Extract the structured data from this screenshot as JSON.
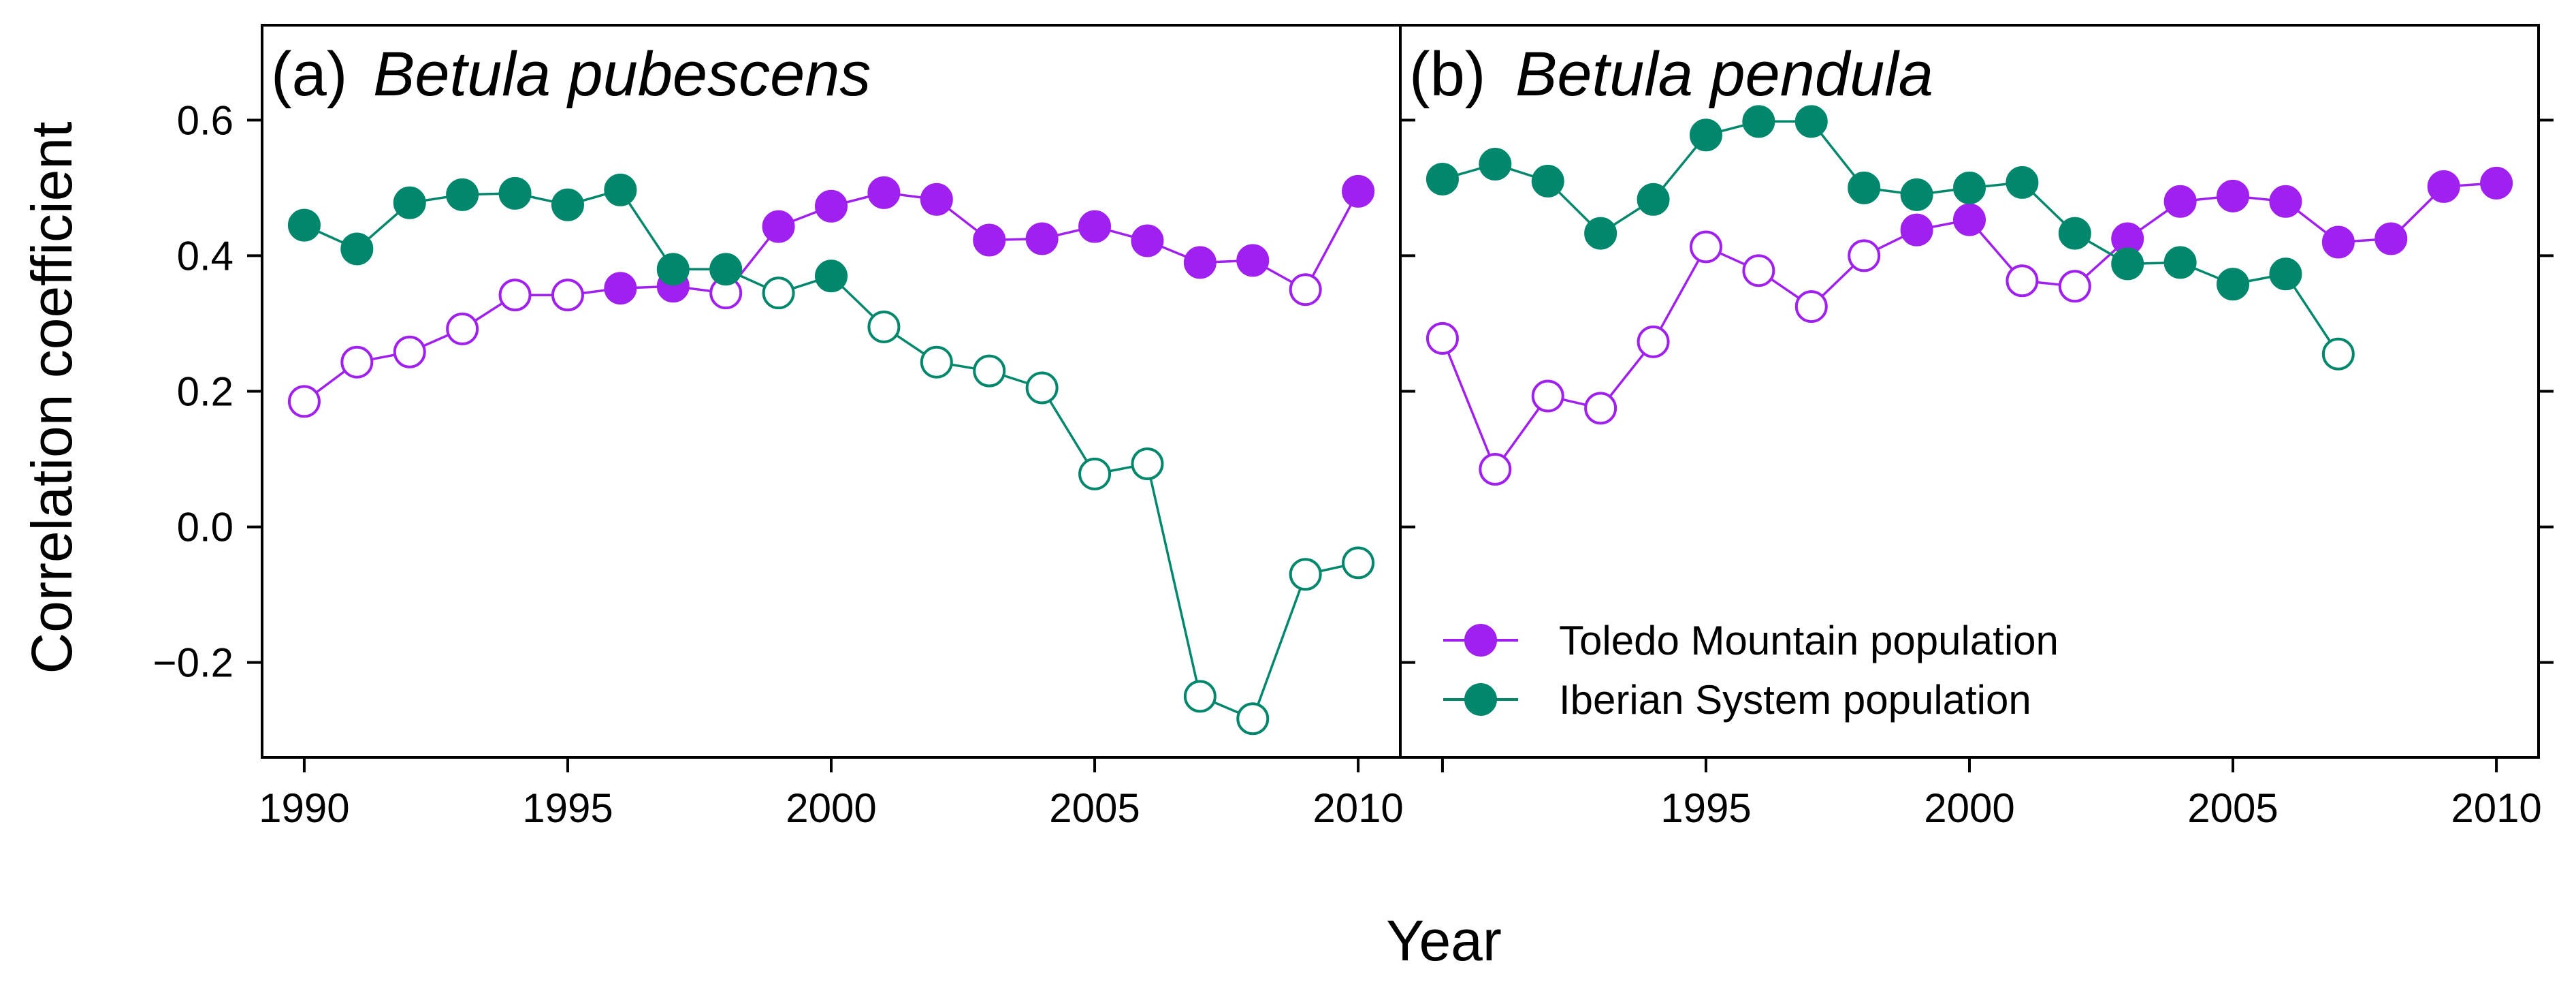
{
  "colors": {
    "toledo": "#a020f0",
    "iberian": "#00876c",
    "axis": "#000000"
  },
  "chart_data": {
    "type": "line",
    "xlabel": "Year",
    "ylabel": "Correlation coefficient",
    "xlim": [
      1989.2,
      2010.8
    ],
    "ylim": [
      -0.34,
      0.74
    ],
    "x_ticks": [
      1990,
      1995,
      2000,
      2005,
      2010
    ],
    "x_tick_labels": [
      "1990",
      "1995",
      "2000",
      "2005",
      "2010"
    ],
    "y_ticks": [
      -0.2,
      0.0,
      0.2,
      0.4,
      0.6
    ],
    "y_tick_labels": [
      "−0.2",
      "0.0",
      "0.2",
      "0.4",
      "0.6"
    ],
    "marker_note": "filled = significant, hollow = not significant",
    "legend": {
      "placement": "bottom-left of panel (b)",
      "entries": [
        {
          "label": "Toledo Mountain population",
          "series": "toledo"
        },
        {
          "label": "Iberian System population",
          "series": "iberian"
        }
      ]
    },
    "panels": [
      {
        "label": "(a)",
        "species": "Betula pubescens",
        "x_tick_labels_shown": [
          "1990",
          "1995",
          "2000",
          "2005",
          "2010"
        ],
        "series": [
          {
            "key": "toledo",
            "name": "Toledo Mountain population",
            "x": [
              1990,
              1991,
              1992,
              1993,
              1994,
              1995,
              1996,
              1997,
              1998,
              1999,
              2000,
              2001,
              2002,
              2003,
              2004,
              2005,
              2006,
              2007,
              2008,
              2009,
              2010
            ],
            "y": [
              0.185,
              0.243,
              0.258,
              0.292,
              0.342,
              0.342,
              0.352,
              0.355,
              0.345,
              0.443,
              0.473,
              0.493,
              0.483,
              0.423,
              0.425,
              0.443,
              0.422,
              0.39,
              0.393,
              0.35,
              0.495
            ],
            "filled": [
              false,
              false,
              false,
              false,
              false,
              false,
              true,
              true,
              false,
              true,
              true,
              true,
              true,
              true,
              true,
              true,
              true,
              true,
              true,
              false,
              true
            ]
          },
          {
            "key": "iberian",
            "name": "Iberian System population",
            "x": [
              1990,
              1991,
              1992,
              1993,
              1994,
              1995,
              1996,
              1997,
              1998,
              1999,
              2000,
              2001,
              2002,
              2003,
              2004,
              2005,
              2006,
              2007,
              2008,
              2009,
              2010
            ],
            "y": [
              0.445,
              0.41,
              0.478,
              0.49,
              0.492,
              0.475,
              0.497,
              0.38,
              0.38,
              0.345,
              0.37,
              0.295,
              0.243,
              0.23,
              0.205,
              0.078,
              0.093,
              -0.25,
              -0.283,
              -0.07,
              -0.053
            ],
            "filled": [
              true,
              true,
              true,
              true,
              true,
              true,
              true,
              true,
              true,
              false,
              true,
              false,
              false,
              false,
              false,
              false,
              false,
              false,
              false,
              false,
              false
            ]
          }
        ]
      },
      {
        "label": "(b)",
        "species": "Betula pendula",
        "x_tick_labels_shown": [
          "",
          "1995",
          "2000",
          "2005",
          "2010"
        ],
        "series": [
          {
            "key": "toledo",
            "name": "Toledo Mountain population",
            "x": [
              1990,
              1991,
              1992,
              1993,
              1994,
              1995,
              1996,
              1997,
              1998,
              1999,
              2000,
              2001,
              2002,
              2003,
              2004,
              2005,
              2006,
              2007,
              2008,
              2009,
              2010
            ],
            "y": [
              0.278,
              0.085,
              0.193,
              0.175,
              0.273,
              0.413,
              0.378,
              0.325,
              0.4,
              0.438,
              0.453,
              0.363,
              0.355,
              0.425,
              0.48,
              0.488,
              0.48,
              0.42,
              0.425,
              0.502,
              0.507
            ],
            "filled": [
              false,
              false,
              false,
              false,
              false,
              false,
              false,
              false,
              false,
              true,
              true,
              false,
              false,
              true,
              true,
              true,
              true,
              true,
              true,
              true,
              true
            ]
          },
          {
            "key": "iberian",
            "name": "Iberian System population",
            "x": [
              1990,
              1991,
              1992,
              1993,
              1994,
              1995,
              1996,
              1997,
              1998,
              1999,
              2000,
              2001,
              2002,
              2003,
              2004,
              2005,
              2006,
              2007
            ],
            "y": [
              0.513,
              0.535,
              0.51,
              0.433,
              0.483,
              0.578,
              0.598,
              0.598,
              0.5,
              0.49,
              0.5,
              0.508,
              0.433,
              0.388,
              0.39,
              0.358,
              0.373,
              0.255
            ],
            "filled": [
              true,
              true,
              true,
              true,
              true,
              true,
              true,
              true,
              true,
              true,
              true,
              true,
              true,
              true,
              true,
              true,
              true,
              false
            ]
          }
        ]
      }
    ]
  }
}
